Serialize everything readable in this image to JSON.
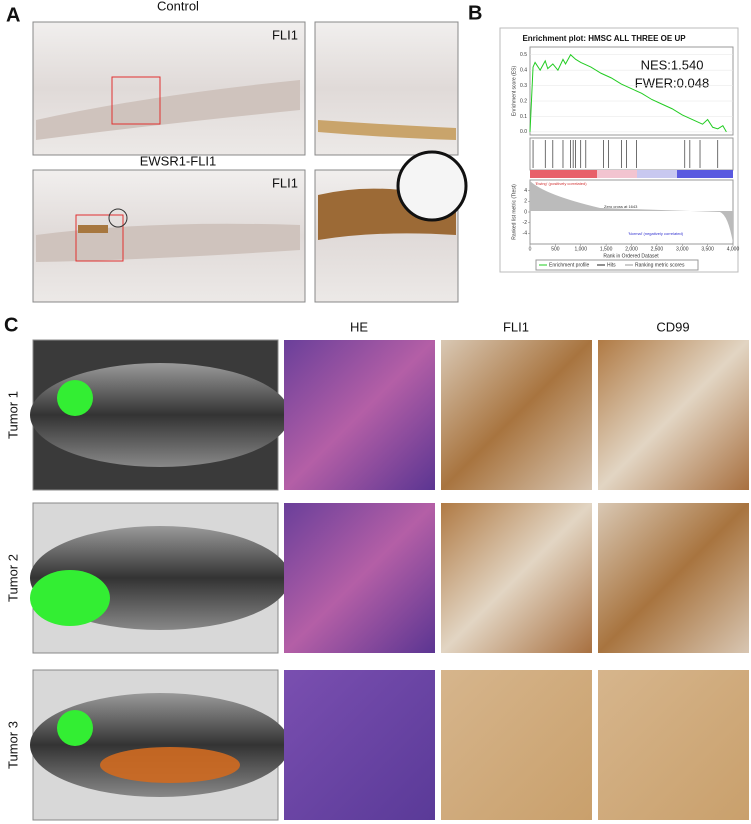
{
  "panel_a": {
    "label": "A",
    "rows": [
      {
        "title": "Control",
        "stain": "FLI1"
      },
      {
        "title": "EWSR1-FLI1",
        "stain": "FLI1"
      }
    ]
  },
  "panel_b": {
    "label": "B",
    "title": "Enrichment plot: HMSC ALL THREE OE UP",
    "nes": "NES:1.540",
    "fwer": "FWER:0.048",
    "y_label": "Enrichment score (ES)",
    "metric_label": "Ranked list metric (Ttest)",
    "x_label": "Rank in Ordered Dataset",
    "pos_label": "'Ewing' (positively correlated)",
    "zero_cross": "Zero cross at 1643",
    "neg_label": "'Normal' (negatively correlated)",
    "legend": [
      "Enrichment profile",
      "Hits",
      "Ranking metric scores"
    ],
    "xlim": [
      0,
      4000
    ],
    "xticks": [
      0,
      500,
      {
        "value": 1000,
        "label": "1,000"
      },
      {
        "value": 1500,
        "label": "1,500"
      },
      {
        "value": 2000,
        "label": "2,000"
      },
      {
        "value": 2500,
        "label": "2,500"
      },
      {
        "value": 3000,
        "label": "3,000"
      },
      {
        "value": 3500,
        "label": "3,500"
      },
      {
        "value": 4000,
        "label": "4,000"
      }
    ],
    "ylim": [
      -0.02,
      0.55
    ],
    "yticks": [
      {
        "value": 0,
        "label": "0.0"
      },
      0.1,
      0.2,
      0.3,
      0.4,
      0.5
    ],
    "metric_ylim": [
      -6,
      6
    ],
    "metric_ticks": [
      -4,
      -2,
      0,
      2,
      4
    ],
    "curve": {
      "x": [
        0,
        60,
        100,
        200,
        300,
        350,
        450,
        550,
        650,
        700,
        800,
        900,
        1000,
        1200,
        1400,
        1600,
        1800,
        2000,
        2200,
        2400,
        2600,
        2800,
        3000,
        3200,
        3400,
        3500,
        3600,
        3700,
        3800,
        3870
      ],
      "y": [
        0,
        0.42,
        0.45,
        0.4,
        0.46,
        0.41,
        0.44,
        0.4,
        0.47,
        0.44,
        0.5,
        0.47,
        0.45,
        0.42,
        0.38,
        0.35,
        0.31,
        0.28,
        0.25,
        0.21,
        0.18,
        0.15,
        0.11,
        0.08,
        0.05,
        0.08,
        0.03,
        0.02,
        0.04,
        0
      ]
    },
    "hits": [
      60,
      300,
      450,
      650,
      800,
      850,
      900,
      1000,
      1100,
      1450,
      1550,
      1800,
      1900,
      2100,
      3050,
      3150,
      3350,
      3700
    ]
  },
  "panel_c": {
    "label": "C",
    "columns": [
      "HE",
      "FLI1",
      "CD99"
    ],
    "rows": [
      "Tumor 1",
      "Tumor 2",
      "Tumor 3"
    ]
  }
}
